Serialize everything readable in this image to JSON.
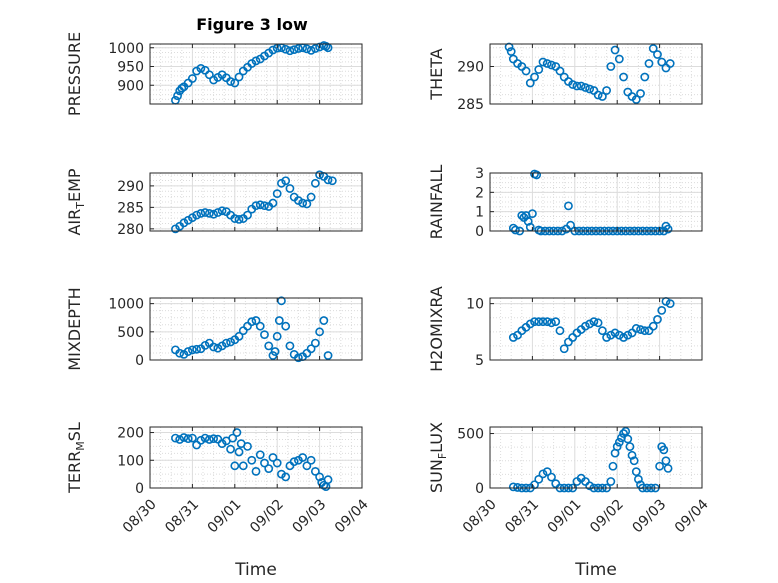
{
  "figure": {
    "title": "Figure 3 low"
  },
  "colors": {
    "marker": "#0072BD",
    "axis": "#262626",
    "grid": "#dcdcdc"
  },
  "chart_data": [
    {
      "type": "scatter",
      "title": "Figure 3 low",
      "ylabel": "PRESSURE",
      "ylabel_sub": "",
      "ylabel_tail": "",
      "ylim": [
        850,
        1010
      ],
      "yticks": [
        900,
        950,
        1000
      ],
      "xticklabels": [],
      "xlabel": "",
      "xlim": [
        0,
        5
      ],
      "x": [
        0.6,
        0.65,
        0.7,
        0.75,
        0.8,
        0.9,
        1.0,
        1.1,
        1.2,
        1.3,
        1.4,
        1.5,
        1.6,
        1.7,
        1.8,
        1.9,
        2.0,
        2.1,
        2.2,
        2.3,
        2.4,
        2.5,
        2.6,
        2.7,
        2.8,
        2.9,
        3.0,
        3.1,
        3.2,
        3.3,
        3.4,
        3.5,
        3.6,
        3.7,
        3.8,
        3.9,
        4.0,
        4.1,
        4.15,
        4.2
      ],
      "y": [
        860,
        872,
        885,
        892,
        896,
        906,
        918,
        938,
        945,
        940,
        928,
        914,
        921,
        928,
        920,
        910,
        906,
        922,
        938,
        948,
        958,
        965,
        970,
        978,
        986,
        994,
        999,
        1000,
        996,
        992,
        995,
        998,
        1000,
        997,
        993,
        998,
        1002,
        1006,
        1004,
        1000
      ]
    },
    {
      "type": "scatter",
      "title": "",
      "ylabel": "THETA",
      "ylabel_sub": "",
      "ylabel_tail": "",
      "ylim": [
        285,
        293
      ],
      "yticks": [
        285,
        290
      ],
      "xticklabels": [],
      "xlabel": "",
      "xlim": [
        0,
        5
      ],
      "x": [
        0.45,
        0.5,
        0.55,
        0.65,
        0.75,
        0.85,
        0.95,
        1.05,
        1.15,
        1.25,
        1.35,
        1.45,
        1.55,
        1.65,
        1.75,
        1.85,
        1.95,
        2.05,
        2.15,
        2.25,
        2.35,
        2.45,
        2.55,
        2.65,
        2.75,
        2.85,
        2.95,
        3.05,
        3.15,
        3.25,
        3.35,
        3.45,
        3.55,
        3.65,
        3.75,
        3.85,
        3.95,
        4.05,
        4.15,
        4.25
      ],
      "y": [
        292.6,
        292.0,
        291.0,
        290.4,
        290.0,
        289.4,
        287.8,
        288.6,
        289.6,
        290.6,
        290.4,
        290.2,
        290.0,
        289.4,
        288.6,
        288.0,
        287.6,
        287.4,
        287.4,
        287.2,
        287.0,
        286.8,
        286.2,
        286.0,
        286.8,
        290.0,
        292.2,
        291.0,
        288.6,
        286.6,
        286.0,
        285.6,
        286.4,
        288.6,
        290.4,
        292.4,
        291.6,
        290.6,
        289.8,
        290.4
      ]
    },
    {
      "type": "scatter",
      "title": "",
      "ylabel": "AIR",
      "ylabel_sub": "T",
      "ylabel_tail": "EMP",
      "ylim": [
        279.5,
        293
      ],
      "yticks": [
        280,
        285,
        290
      ],
      "xticklabels": [],
      "xlabel": "",
      "xlim": [
        0,
        5
      ],
      "x": [
        0.6,
        0.7,
        0.8,
        0.9,
        1.0,
        1.1,
        1.2,
        1.3,
        1.4,
        1.5,
        1.6,
        1.7,
        1.8,
        1.9,
        2.0,
        2.1,
        2.2,
        2.3,
        2.4,
        2.5,
        2.6,
        2.7,
        2.8,
        2.9,
        3.0,
        3.1,
        3.2,
        3.3,
        3.4,
        3.5,
        3.6,
        3.7,
        3.8,
        3.9,
        4.0,
        4.1,
        4.2,
        4.3
      ],
      "y": [
        280.0,
        280.6,
        281.4,
        282.0,
        282.6,
        283.2,
        283.6,
        283.8,
        283.6,
        283.4,
        283.8,
        284.2,
        284.0,
        283.2,
        282.4,
        282.2,
        282.4,
        283.2,
        284.6,
        285.4,
        285.6,
        285.4,
        285.2,
        286.0,
        288.2,
        290.6,
        291.2,
        289.4,
        287.4,
        286.6,
        286.0,
        285.8,
        287.4,
        290.6,
        292.6,
        292.2,
        291.4,
        291.2
      ]
    },
    {
      "type": "scatter",
      "title": "",
      "ylabel": "RAINFALL",
      "ylabel_sub": "",
      "ylabel_tail": "",
      "ylim": [
        0,
        3
      ],
      "yticks": [
        0,
        1,
        2,
        3
      ],
      "xticklabels": [],
      "xlabel": "",
      "xlim": [
        0,
        5
      ],
      "x": [
        0.55,
        0.6,
        0.7,
        0.75,
        0.8,
        0.85,
        0.9,
        0.95,
        1.0,
        1.05,
        1.1,
        1.15,
        1.2,
        1.3,
        1.4,
        1.5,
        1.6,
        1.7,
        1.8,
        1.85,
        1.9,
        2.0,
        2.1,
        2.2,
        2.3,
        2.4,
        2.5,
        2.6,
        2.7,
        2.8,
        2.9,
        3.0,
        3.1,
        3.2,
        3.3,
        3.4,
        3.5,
        3.6,
        3.7,
        3.8,
        3.9,
        4.0,
        4.1,
        4.15,
        4.2
      ],
      "y": [
        0.15,
        0.05,
        0.0,
        0.8,
        0.7,
        0.8,
        0.5,
        0.2,
        0.9,
        2.95,
        2.9,
        0.05,
        0.0,
        0.0,
        0.0,
        0.0,
        0.0,
        0.0,
        0.1,
        1.3,
        0.3,
        0.0,
        0.0,
        0.0,
        0.0,
        0.0,
        0.0,
        0.0,
        0.0,
        0.0,
        0.0,
        0.0,
        0.0,
        0.0,
        0.0,
        0.0,
        0.0,
        0.0,
        0.0,
        0.0,
        0.0,
        0.0,
        0.0,
        0.25,
        0.1
      ]
    },
    {
      "type": "scatter",
      "title": "",
      "ylabel": "MIXDEPTH",
      "ylabel_sub": "",
      "ylabel_tail": "",
      "ylim": [
        0,
        1100
      ],
      "yticks": [
        0,
        500,
        1000
      ],
      "xticklabels": [],
      "xlabel": "",
      "xlim": [
        0,
        5
      ],
      "x": [
        0.6,
        0.7,
        0.8,
        0.9,
        1.0,
        1.1,
        1.2,
        1.3,
        1.4,
        1.5,
        1.6,
        1.7,
        1.8,
        1.9,
        2.0,
        2.1,
        2.2,
        2.3,
        2.4,
        2.5,
        2.6,
        2.7,
        2.8,
        2.9,
        2.95,
        3.0,
        3.05,
        3.1,
        3.2,
        3.3,
        3.4,
        3.5,
        3.6,
        3.7,
        3.8,
        3.9,
        4.0,
        4.1,
        4.2
      ],
      "y": [
        180,
        120,
        100,
        150,
        180,
        190,
        200,
        260,
        300,
        230,
        210,
        250,
        300,
        320,
        360,
        420,
        520,
        600,
        680,
        700,
        600,
        450,
        250,
        80,
        150,
        420,
        700,
        1050,
        600,
        250,
        100,
        40,
        60,
        120,
        200,
        300,
        500,
        700,
        80
      ]
    },
    {
      "type": "scatter",
      "title": "",
      "ylabel": "H2OMIXRA",
      "ylabel_sub": "",
      "ylabel_tail": "",
      "ylim": [
        5,
        10.5
      ],
      "yticks": [
        5,
        10
      ],
      "xticklabels": [],
      "xlabel": "",
      "xlim": [
        0,
        5
      ],
      "x": [
        0.55,
        0.65,
        0.75,
        0.85,
        0.95,
        1.05,
        1.15,
        1.25,
        1.35,
        1.45,
        1.55,
        1.65,
        1.75,
        1.85,
        1.95,
        2.05,
        2.15,
        2.25,
        2.35,
        2.45,
        2.55,
        2.65,
        2.75,
        2.85,
        2.95,
        3.05,
        3.15,
        3.25,
        3.35,
        3.45,
        3.55,
        3.65,
        3.75,
        3.85,
        3.95,
        4.05,
        4.15,
        4.25
      ],
      "y": [
        7.0,
        7.2,
        7.6,
        7.9,
        8.2,
        8.4,
        8.4,
        8.4,
        8.4,
        8.3,
        8.4,
        7.6,
        6.0,
        6.6,
        7.0,
        7.4,
        7.7,
        8.0,
        8.2,
        8.4,
        8.3,
        7.6,
        7.0,
        7.2,
        7.4,
        7.2,
        7.0,
        7.2,
        7.4,
        7.8,
        7.7,
        7.6,
        7.6,
        8.0,
        8.6,
        9.4,
        10.2,
        10.0
      ]
    },
    {
      "type": "scatter",
      "title": "",
      "ylabel": "TERR",
      "ylabel_sub": "M",
      "ylabel_tail": "SL",
      "ylim": [
        0,
        220
      ],
      "yticks": [
        0,
        100,
        200
      ],
      "xticklabels": [
        "08/30",
        "08/31",
        "09/01",
        "09/02",
        "09/03",
        "09/04"
      ],
      "xlabel": "Time",
      "xlim": [
        0,
        5
      ],
      "x": [
        0.6,
        0.7,
        0.8,
        0.9,
        1.0,
        1.1,
        1.2,
        1.3,
        1.4,
        1.5,
        1.6,
        1.7,
        1.8,
        1.9,
        1.95,
        2.0,
        2.05,
        2.1,
        2.15,
        2.2,
        2.3,
        2.4,
        2.5,
        2.6,
        2.7,
        2.8,
        2.9,
        3.0,
        3.1,
        3.2,
        3.3,
        3.4,
        3.5,
        3.6,
        3.7,
        3.8,
        3.9,
        4.0,
        4.05,
        4.1,
        4.15,
        4.2
      ],
      "y": [
        180,
        175,
        182,
        178,
        180,
        155,
        172,
        180,
        175,
        178,
        176,
        160,
        170,
        140,
        180,
        80,
        200,
        130,
        160,
        80,
        150,
        100,
        60,
        120,
        90,
        70,
        110,
        90,
        50,
        40,
        80,
        95,
        100,
        110,
        80,
        100,
        60,
        40,
        20,
        10,
        5,
        30
      ]
    },
    {
      "type": "scatter",
      "title": "",
      "ylabel": "SUN",
      "ylabel_sub": "F",
      "ylabel_tail": "LUX",
      "ylim": [
        0,
        560
      ],
      "yticks": [
        0,
        500
      ],
      "xticklabels": [
        "08/30",
        "08/31",
        "09/01",
        "09/02",
        "09/03",
        "09/04"
      ],
      "xlabel": "Time",
      "xlim": [
        0,
        5
      ],
      "x": [
        0.55,
        0.65,
        0.75,
        0.85,
        0.95,
        1.05,
        1.15,
        1.25,
        1.35,
        1.45,
        1.55,
        1.65,
        1.75,
        1.85,
        1.95,
        2.05,
        2.15,
        2.25,
        2.35,
        2.45,
        2.55,
        2.65,
        2.75,
        2.85,
        2.9,
        2.95,
        3.0,
        3.05,
        3.1,
        3.15,
        3.2,
        3.25,
        3.3,
        3.35,
        3.4,
        3.45,
        3.5,
        3.55,
        3.6,
        3.7,
        3.8,
        3.9,
        4.0,
        4.05,
        4.1,
        4.15,
        4.2
      ],
      "y": [
        10,
        5,
        0,
        0,
        0,
        30,
        80,
        130,
        150,
        100,
        40,
        0,
        0,
        0,
        0,
        60,
        90,
        60,
        20,
        0,
        0,
        0,
        0,
        60,
        200,
        320,
        380,
        420,
        460,
        500,
        520,
        450,
        380,
        300,
        250,
        150,
        80,
        30,
        0,
        0,
        0,
        0,
        200,
        380,
        350,
        250,
        180
      ]
    }
  ]
}
